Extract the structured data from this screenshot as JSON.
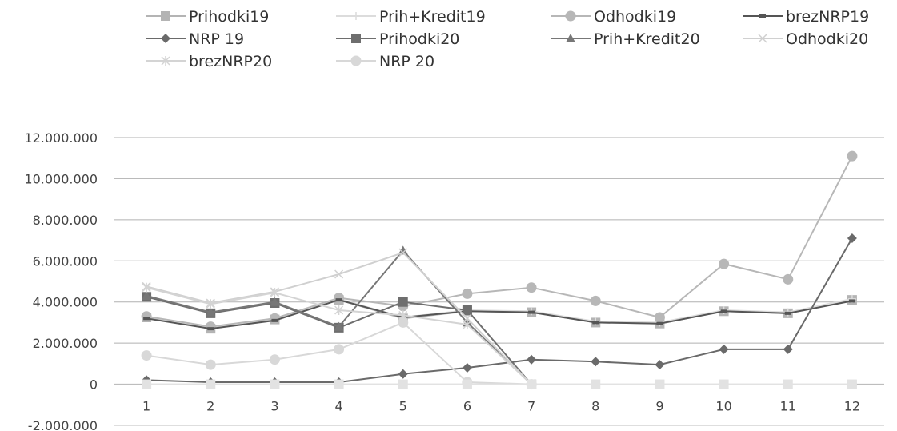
{
  "chart_data": {
    "type": "line",
    "categories": [
      "1",
      "2",
      "3",
      "4",
      "5",
      "6",
      "7",
      "8",
      "9",
      "10",
      "11",
      "12"
    ],
    "y_ticks": [
      "-2.000.000",
      "0",
      "2.000.000",
      "4.000.000",
      "6.000.000",
      "8.000.000",
      "10.000.000",
      "12.000.000"
    ],
    "ylim": [
      -2000000,
      12000000
    ],
    "grid": "horizontal",
    "legend_position": "top",
    "series": [
      {
        "name": "Prihodki19",
        "color": "#b4b4b4",
        "marker": "square",
        "values": [
          3250000,
          2700000,
          3150000,
          4100000,
          3200000,
          3550000,
          3500000,
          3000000,
          2950000,
          3550000,
          3450000,
          4100000
        ]
      },
      {
        "name": "Prih+Kredit19",
        "color": "#dcdcdc",
        "marker": "plus",
        "values": [
          3300000,
          2750000,
          3200000,
          4150000,
          3250000,
          3600000,
          3550000,
          3050000,
          3000000,
          3600000,
          3500000,
          4150000
        ]
      },
      {
        "name": "Odhodki19",
        "color": "#b7b7b7",
        "marker": "circle",
        "values": [
          3300000,
          2800000,
          3200000,
          4200000,
          3800000,
          4400000,
          4700000,
          4050000,
          3250000,
          5850000,
          5100000,
          11100000
        ]
      },
      {
        "name": "brezNRP19",
        "color": "#555555",
        "marker": "dash",
        "values": [
          3200000,
          2700000,
          3100000,
          4100000,
          3250000,
          3550000,
          3500000,
          3000000,
          2950000,
          3550000,
          3450000,
          4050000
        ]
      },
      {
        "name": "NRP 19",
        "color": "#6a6a6a",
        "marker": "diamond",
        "values": [
          200000,
          100000,
          100000,
          100000,
          500000,
          800000,
          1200000,
          1100000,
          950000,
          1700000,
          1700000,
          7100000
        ]
      },
      {
        "name": "Prihodki20",
        "color": "#6e6e6e",
        "marker": "square",
        "values": [
          4250000,
          3450000,
          3950000,
          2750000,
          4000000,
          3600000,
          0,
          null,
          null,
          null,
          null,
          null
        ]
      },
      {
        "name": "Prih+Kredit20",
        "color": "#777777",
        "marker": "triangle",
        "values": [
          4300000,
          3500000,
          4000000,
          2800000,
          6500000,
          3000000,
          0,
          null,
          null,
          null,
          null,
          null
        ]
      },
      {
        "name": "Odhodki20",
        "color": "#d0d0d0",
        "marker": "x",
        "values": [
          4750000,
          3950000,
          4500000,
          5350000,
          6400000,
          3200000,
          0,
          null,
          null,
          null,
          null,
          null
        ]
      },
      {
        "name": "brezNRP20",
        "color": "#d4d4d4",
        "marker": "star",
        "values": [
          4700000,
          3900000,
          4450000,
          3600000,
          3350000,
          2900000,
          0,
          null,
          null,
          null,
          null,
          null
        ]
      },
      {
        "name": "NRP 20",
        "color": "#d8d8d8",
        "marker": "circle",
        "values": [
          1400000,
          950000,
          1200000,
          1700000,
          3000000,
          100000,
          0,
          null,
          null,
          null,
          null,
          null
        ]
      },
      {
        "name": "",
        "color": "#e2e2e2",
        "marker": "square",
        "values": [
          0,
          0,
          0,
          0,
          0,
          0,
          0,
          0,
          0,
          0,
          0,
          0
        ]
      }
    ]
  }
}
